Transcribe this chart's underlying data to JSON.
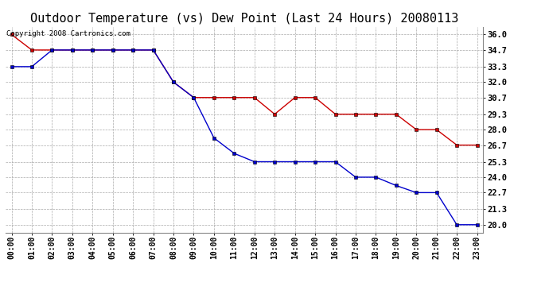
{
  "title": "Outdoor Temperature (vs) Dew Point (Last 24 Hours) 20080113",
  "copyright_text": "Copyright 2008 Cartronics.com",
  "x_labels": [
    "00:00",
    "01:00",
    "02:00",
    "03:00",
    "04:00",
    "05:00",
    "06:00",
    "07:00",
    "08:00",
    "09:00",
    "10:00",
    "11:00",
    "12:00",
    "13:00",
    "14:00",
    "15:00",
    "16:00",
    "17:00",
    "18:00",
    "19:00",
    "20:00",
    "21:00",
    "22:00",
    "23:00"
  ],
  "temp_data": [
    36.0,
    34.7,
    34.7,
    34.7,
    34.7,
    34.7,
    34.7,
    34.7,
    32.0,
    30.7,
    30.7,
    30.7,
    30.7,
    29.3,
    30.7,
    30.7,
    29.3,
    29.3,
    29.3,
    29.3,
    28.0,
    28.0,
    26.7,
    26.7
  ],
  "dew_data": [
    33.3,
    33.3,
    34.7,
    34.7,
    34.7,
    34.7,
    34.7,
    34.7,
    32.0,
    30.7,
    27.3,
    26.0,
    25.3,
    25.3,
    25.3,
    25.3,
    25.3,
    24.0,
    24.0,
    23.3,
    22.7,
    22.7,
    20.0,
    20.0
  ],
  "y_ticks": [
    20.0,
    21.3,
    22.7,
    24.0,
    25.3,
    26.7,
    28.0,
    29.3,
    30.7,
    32.0,
    33.3,
    34.7,
    36.0
  ],
  "y_min": 19.35,
  "y_max": 36.65,
  "temp_color": "#cc0000",
  "dew_color": "#0000cc",
  "grid_color": "#aaaaaa",
  "bg_color": "#ffffff",
  "title_fontsize": 11,
  "copyright_fontsize": 6.5,
  "label_fontsize": 7,
  "ytick_fontsize": 7.5
}
